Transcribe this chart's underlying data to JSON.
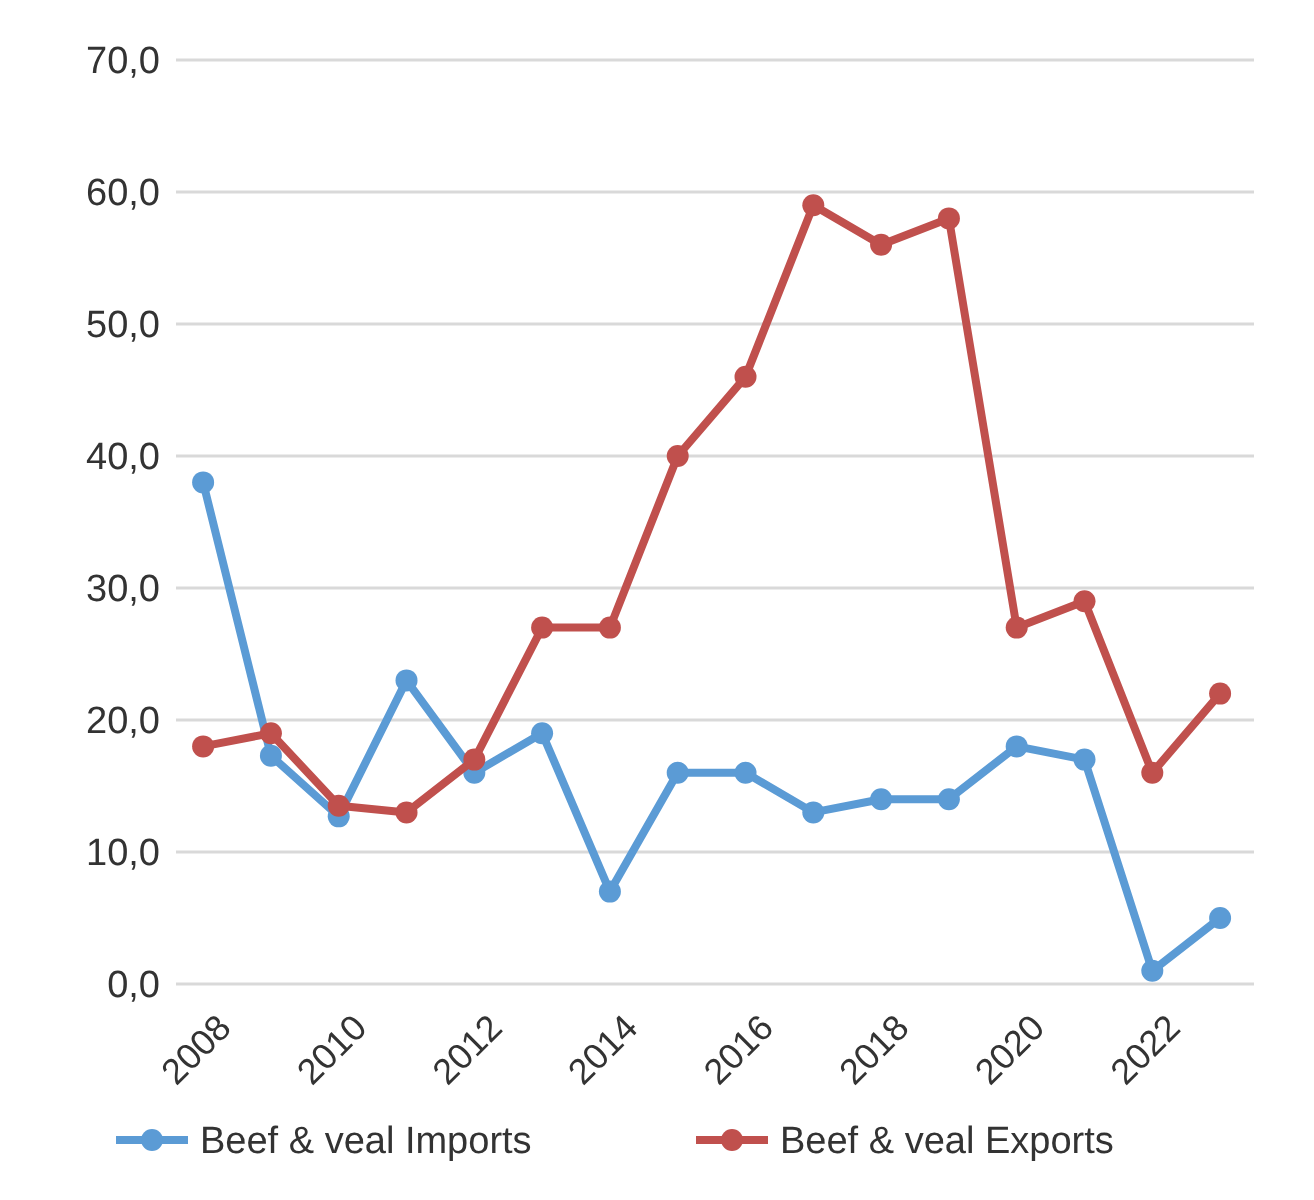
{
  "chart_data": {
    "type": "line",
    "x": [
      2008,
      2009,
      2010,
      2011,
      2012,
      2013,
      2014,
      2015,
      2016,
      2017,
      2018,
      2019,
      2020,
      2021,
      2022,
      2023
    ],
    "series": [
      {
        "name": "Beef & veal Imports",
        "color": "#5b9bd5",
        "values": [
          38,
          17.3,
          12.7,
          23,
          16,
          19,
          7,
          16,
          16,
          13,
          14,
          14,
          18,
          17,
          1,
          5
        ]
      },
      {
        "name": "Beef & veal Exports",
        "color": "#c0504d",
        "values": [
          18,
          19,
          13.5,
          13,
          17,
          27,
          27,
          40,
          46,
          59,
          56,
          58,
          27,
          29,
          16,
          22
        ]
      }
    ],
    "xlim": [
      2007.6,
      2023.5
    ],
    "xticks": [
      2008,
      2010,
      2012,
      2014,
      2016,
      2018,
      2020,
      2022
    ],
    "ylim": [
      0,
      70
    ],
    "yticks": [
      {
        "value": 0,
        "label": "0,0"
      },
      {
        "value": 10,
        "label": "10,0"
      },
      {
        "value": 20,
        "label": "20,0"
      },
      {
        "value": 30,
        "label": "30,0"
      },
      {
        "value": 40,
        "label": "40,0"
      },
      {
        "value": 50,
        "label": "50,0"
      },
      {
        "value": 60,
        "label": "60,0"
      },
      {
        "value": 70,
        "label": "70,0"
      }
    ],
    "grid": "y",
    "legend": "bottom",
    "marker": "circle",
    "line_style": "solid"
  }
}
